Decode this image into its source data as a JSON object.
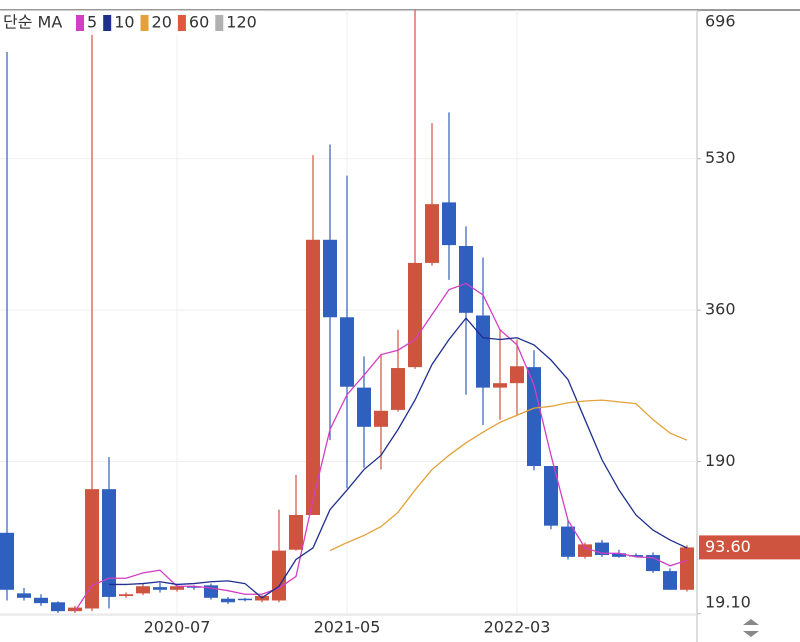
{
  "chart_data": {
    "type": "candlestick",
    "legend_title": "단순 MA",
    "categories": [
      null,
      null,
      null,
      null,
      null,
      null,
      null,
      null,
      null,
      null,
      "2020-07",
      null,
      null,
      null,
      null,
      null,
      null,
      null,
      null,
      null,
      "2021-05",
      null,
      null,
      null,
      null,
      null,
      null,
      null,
      null,
      null,
      "2022-03",
      null,
      null,
      null,
      null,
      null,
      null,
      null,
      null,
      null,
      null
    ],
    "open": [
      110,
      42,
      37,
      32,
      22,
      25,
      159,
      39,
      42,
      49,
      46,
      50,
      51,
      36,
      36,
      34,
      34,
      91,
      130,
      439,
      352,
      273,
      229,
      248,
      296,
      413,
      481,
      432,
      354,
      273,
      278,
      296,
      185,
      117,
      83,
      99,
      87,
      85,
      85,
      67,
      46
    ],
    "high": [
      650,
      48,
      41,
      33,
      28,
      675,
      195,
      43,
      53,
      54,
      52,
      51,
      53,
      38,
      37,
      40,
      136,
      175,
      534,
      546,
      511,
      308,
      310,
      338,
      697,
      570,
      582,
      454,
      419,
      338,
      327,
      315,
      185,
      124,
      99,
      102,
      91,
      87,
      88,
      70,
      96
    ],
    "low": [
      34,
      34,
      28,
      20,
      20,
      22,
      25,
      37,
      40,
      43,
      44,
      46,
      35,
      30,
      33,
      32,
      32,
      90,
      130,
      214,
      160,
      183,
      181,
      246,
      294,
      410,
      394,
      265,
      231,
      237,
      242,
      180,
      114,
      80,
      81,
      83,
      82,
      83,
      65,
      46,
      44
    ],
    "close": [
      46,
      37,
      31,
      22,
      26,
      159,
      38,
      41,
      50,
      46,
      50,
      49,
      37,
      32,
      35,
      39,
      90,
      130,
      439,
      352,
      274,
      229,
      247,
      295,
      413,
      479,
      433,
      357,
      273,
      278,
      297,
      185,
      118,
      83,
      97,
      85,
      83,
      84,
      67,
      46,
      93.6
    ],
    "up_color": "#cf5440",
    "down_color": "#2f5fbf",
    "series": [
      {
        "name": "5",
        "color": "#d23fc4",
        "values": [
          null,
          null,
          null,
          null,
          22,
          51,
          59,
          59,
          65,
          68,
          50,
          50,
          48,
          45,
          41,
          41,
          48,
          61,
          147,
          226,
          265,
          287,
          310,
          315,
          327,
          355,
          383,
          390,
          377,
          338,
          321,
          276,
          197,
          124,
          93,
          87,
          87,
          83,
          82,
          73,
          79
        ]
      },
      {
        "name": "10",
        "color": "#1f2f8f",
        "values": [
          null,
          null,
          null,
          null,
          null,
          null,
          52,
          52,
          53,
          55,
          52,
          53,
          55,
          56,
          53,
          37,
          50,
          80,
          93,
          136,
          158,
          181,
          197,
          226,
          259,
          299,
          327,
          351,
          329,
          327,
          329,
          321,
          304,
          282,
          237,
          192,
          158,
          130,
          113,
          102,
          93
        ]
      },
      {
        "name": "20",
        "color": "#e3a13a",
        "values": [
          null,
          null,
          null,
          null,
          null,
          null,
          null,
          null,
          null,
          null,
          null,
          null,
          null,
          null,
          null,
          null,
          null,
          null,
          null,
          90,
          99,
          107,
          117,
          133,
          158,
          181,
          197,
          211,
          223,
          234,
          242,
          250,
          252,
          256,
          258,
          259,
          257,
          255,
          237,
          222,
          214
        ]
      },
      {
        "name": "60",
        "color": "#e0583a"
      },
      {
        "name": "120",
        "color": "#b0b0b0"
      }
    ],
    "ylim": [
      17.7,
      697
    ],
    "yticks": [
      696,
      530,
      360,
      190,
      {
        "value": 19.1,
        "label": "19.10"
      }
    ],
    "last_price": {
      "value": 93.6,
      "label": "93.60"
    },
    "grid": true
  }
}
